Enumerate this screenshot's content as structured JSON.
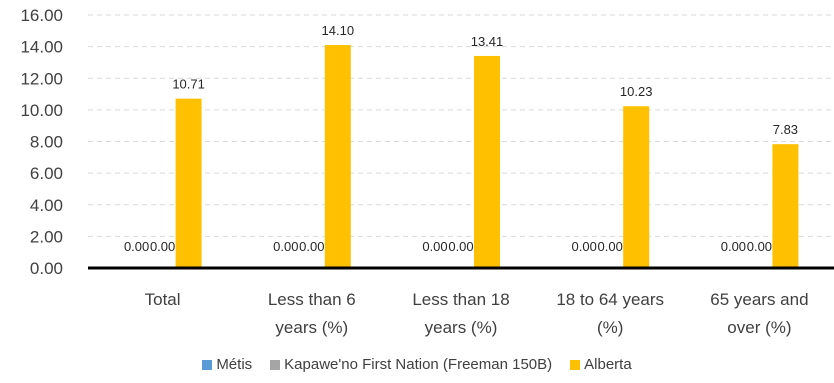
{
  "chart_data": {
    "type": "bar",
    "categories": [
      [
        "Total"
      ],
      [
        "Less than 6",
        "years (%)"
      ],
      [
        "Less than 18",
        "years (%)"
      ],
      [
        "18 to 64 years",
        "(%)"
      ],
      [
        "65 years and",
        "over (%)"
      ]
    ],
    "series": [
      {
        "name": "Métis",
        "color": "#5b9bd5",
        "values": [
          0.0,
          0.0,
          0.0,
          0.0,
          0.0
        ],
        "labels": [
          "0.00",
          "0.00",
          "0.00",
          "0.00",
          "0.00"
        ]
      },
      {
        "name": "Kapawe'no First Nation (Freeman 150B)",
        "color": "#a5a5a5",
        "values": [
          0.0,
          0.0,
          0.0,
          0.0,
          0.0
        ],
        "labels": [
          "0.00",
          "0.00",
          "0.00",
          "0.00",
          "0.00"
        ]
      },
      {
        "name": "Alberta",
        "color": "#ffc000",
        "values": [
          10.71,
          14.1,
          13.41,
          10.23,
          7.83
        ],
        "labels": [
          "10.71",
          "14.10",
          "13.41",
          "10.23",
          "7.83"
        ]
      }
    ],
    "yticks": [
      "0.00",
      "2.00",
      "4.00",
      "6.00",
      "8.00",
      "10.00",
      "12.00",
      "14.00",
      "16.00"
    ],
    "ylim": [
      0,
      16
    ],
    "grid": true,
    "legend_position": "bottom"
  }
}
